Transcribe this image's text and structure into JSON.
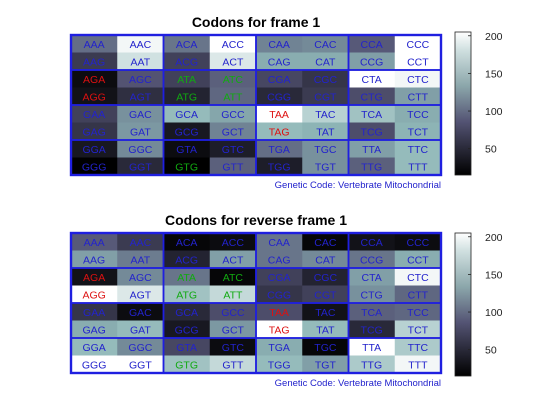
{
  "figure": {
    "panels": [
      {
        "title": "Codons for frame 1",
        "footer": "Genetic Code: Vertebrate Mitochondrial"
      },
      {
        "title": "Codons for reverse frame 1",
        "footer": "Genetic Code: Vertebrate Mitochondrial"
      }
    ]
  },
  "chart_data": [
    {
      "type": "heatmap",
      "title": "Codons for frame 1",
      "colormap": "bone",
      "clim": [
        15,
        205
      ],
      "colorbar_ticks": [
        50,
        100,
        150,
        200
      ],
      "footer": "Genetic Code: Vertebrate Mitochondrial",
      "rows": [
        [
          {
            "codon": "AAA",
            "value": 105
          },
          {
            "codon": "AAC",
            "value": 200
          },
          {
            "codon": "ACA",
            "value": 110
          },
          {
            "codon": "ACC",
            "value": 215
          },
          {
            "codon": "CAA",
            "value": 120
          },
          {
            "codon": "CAC",
            "value": 125
          },
          {
            "codon": "CCA",
            "value": 90
          },
          {
            "codon": "CCC",
            "value": 245
          }
        ],
        [
          {
            "codon": "AAG",
            "value": 65
          },
          {
            "codon": "AAT",
            "value": 185
          },
          {
            "codon": "ACG",
            "value": 70
          },
          {
            "codon": "ACT",
            "value": 190
          },
          {
            "codon": "CAG",
            "value": 150
          },
          {
            "codon": "CAT",
            "value": 150
          },
          {
            "codon": "CCG",
            "value": 140
          },
          {
            "codon": "CCT",
            "value": 215
          }
        ],
        [
          {
            "codon": "AGA",
            "value": 25
          },
          {
            "codon": "AGC",
            "value": 85
          },
          {
            "codon": "ATA",
            "value": 70
          },
          {
            "codon": "ATC",
            "value": 95
          },
          {
            "codon": "CGA",
            "value": 75
          },
          {
            "codon": "CGC",
            "value": 60
          },
          {
            "codon": "CTA",
            "value": 210
          },
          {
            "codon": "CTC",
            "value": 200
          }
        ],
        [
          {
            "codon": "AGG",
            "value": 30
          },
          {
            "codon": "AGT",
            "value": 55
          },
          {
            "codon": "ATG",
            "value": 45
          },
          {
            "codon": "ATT",
            "value": 100
          },
          {
            "codon": "CGG",
            "value": 50
          },
          {
            "codon": "CGT",
            "value": 65
          },
          {
            "codon": "CTG",
            "value": 80
          },
          {
            "codon": "CTT",
            "value": 140
          }
        ],
        [
          {
            "codon": "GAA",
            "value": 70
          },
          {
            "codon": "GAC",
            "value": 130
          },
          {
            "codon": "GCA",
            "value": 160
          },
          {
            "codon": "GCC",
            "value": 145
          },
          {
            "codon": "TAA",
            "value": 235
          },
          {
            "codon": "TAC",
            "value": 175
          },
          {
            "codon": "TCA",
            "value": 165
          },
          {
            "codon": "TCC",
            "value": 150
          }
        ],
        [
          {
            "codon": "GAG",
            "value": 60
          },
          {
            "codon": "GAT",
            "value": 135
          },
          {
            "codon": "GCG",
            "value": 35
          },
          {
            "codon": "GCT",
            "value": 120
          },
          {
            "codon": "TAG",
            "value": 160
          },
          {
            "codon": "TAT",
            "value": 155
          },
          {
            "codon": "TCG",
            "value": 80
          },
          {
            "codon": "TCT",
            "value": 155
          }
        ],
        [
          {
            "codon": "GGA",
            "value": 35
          },
          {
            "codon": "GGC",
            "value": 125
          },
          {
            "codon": "GTA",
            "value": 25
          },
          {
            "codon": "GTC",
            "value": 40
          },
          {
            "codon": "TGA",
            "value": 105
          },
          {
            "codon": "TGC",
            "value": 130
          },
          {
            "codon": "TTA",
            "value": 140
          },
          {
            "codon": "TTC",
            "value": 160
          }
        ],
        [
          {
            "codon": "GGG",
            "value": 15
          },
          {
            "codon": "GGT",
            "value": 50
          },
          {
            "codon": "GTG",
            "value": 15
          },
          {
            "codon": "GTT",
            "value": 95
          },
          {
            "codon": "TGG",
            "value": 40
          },
          {
            "codon": "TGT",
            "value": 130
          },
          {
            "codon": "TTG",
            "value": 95
          },
          {
            "codon": "TTT",
            "value": 160
          }
        ]
      ],
      "highlights": {
        "red": [
          "AGA",
          "AGG",
          "TAA",
          "TAG"
        ],
        "green": [
          "ATA",
          "ATC",
          "ATG",
          "ATT",
          "GTG"
        ]
      }
    },
    {
      "type": "heatmap",
      "title": "Codons for reverse frame 1",
      "colormap": "bone",
      "clim": [
        15,
        205
      ],
      "colorbar_ticks": [
        50,
        100,
        150,
        200
      ],
      "footer": "Genetic Code: Vertebrate Mitochondrial",
      "rows": [
        [
          {
            "codon": "AAA",
            "value": 90
          },
          {
            "codon": "AAC",
            "value": 65
          },
          {
            "codon": "ACA",
            "value": 20
          },
          {
            "codon": "ACC",
            "value": 25
          },
          {
            "codon": "CAA",
            "value": 110
          },
          {
            "codon": "CAC",
            "value": 20
          },
          {
            "codon": "CCA",
            "value": 30
          },
          {
            "codon": "CCC",
            "value": 25
          }
        ],
        [
          {
            "codon": "AAG",
            "value": 140
          },
          {
            "codon": "AAT",
            "value": 115
          },
          {
            "codon": "ACG",
            "value": 45
          },
          {
            "codon": "ACT",
            "value": 140
          },
          {
            "codon": "CAG",
            "value": 110
          },
          {
            "codon": "CAT",
            "value": 125
          },
          {
            "codon": "CCG",
            "value": 110
          },
          {
            "codon": "CCT",
            "value": 150
          }
        ],
        [
          {
            "codon": "AGA",
            "value": 30
          },
          {
            "codon": "AGC",
            "value": 125
          },
          {
            "codon": "ATA",
            "value": 110
          },
          {
            "codon": "ATC",
            "value": 20
          },
          {
            "codon": "CGA",
            "value": 70
          },
          {
            "codon": "CGC",
            "value": 45
          },
          {
            "codon": "CTA",
            "value": 140
          },
          {
            "codon": "CTC",
            "value": 200
          }
        ],
        [
          {
            "codon": "AGG",
            "value": 215
          },
          {
            "codon": "AGT",
            "value": 190
          },
          {
            "codon": "ATG",
            "value": 165
          },
          {
            "codon": "ATT",
            "value": 180
          },
          {
            "codon": "CGG",
            "value": 60
          },
          {
            "codon": "CGT",
            "value": 70
          },
          {
            "codon": "CTG",
            "value": 130
          },
          {
            "codon": "CTT",
            "value": 100
          }
        ],
        [
          {
            "codon": "GAA",
            "value": 60
          },
          {
            "codon": "GAC",
            "value": 25
          },
          {
            "codon": "GCA",
            "value": 50
          },
          {
            "codon": "GCC",
            "value": 80
          },
          {
            "codon": "TAA",
            "value": 80
          },
          {
            "codon": "TAC",
            "value": 30
          },
          {
            "codon": "TCA",
            "value": 95
          },
          {
            "codon": "TCC",
            "value": 100
          }
        ],
        [
          {
            "codon": "GAG",
            "value": 150
          },
          {
            "codon": "GAT",
            "value": 160
          },
          {
            "codon": "GCG",
            "value": 35
          },
          {
            "codon": "GCT",
            "value": 135
          },
          {
            "codon": "TAG",
            "value": 230
          },
          {
            "codon": "TAT",
            "value": 160
          },
          {
            "codon": "TCG",
            "value": 50
          },
          {
            "codon": "TCT",
            "value": 175
          }
        ],
        [
          {
            "codon": "GGA",
            "value": 160
          },
          {
            "codon": "GGC",
            "value": 125
          },
          {
            "codon": "GTA",
            "value": 75
          },
          {
            "codon": "GTC",
            "value": 25
          },
          {
            "codon": "TGA",
            "value": 150
          },
          {
            "codon": "TGC",
            "value": 20
          },
          {
            "codon": "TTA",
            "value": 205
          },
          {
            "codon": "TTC",
            "value": 170
          }
        ],
        [
          {
            "codon": "GGG",
            "value": 240
          },
          {
            "codon": "GGT",
            "value": 235
          },
          {
            "codon": "GTG",
            "value": 165
          },
          {
            "codon": "GTT",
            "value": 180
          },
          {
            "codon": "TGG",
            "value": 160
          },
          {
            "codon": "TGT",
            "value": 140
          },
          {
            "codon": "TTG",
            "value": 170
          },
          {
            "codon": "TTT",
            "value": 200
          }
        ]
      ],
      "highlights": {
        "red": [
          "AGA",
          "AGG",
          "TAA",
          "TAG"
        ],
        "green": [
          "ATA",
          "ATC",
          "ATG",
          "ATT",
          "GTG"
        ]
      }
    }
  ]
}
